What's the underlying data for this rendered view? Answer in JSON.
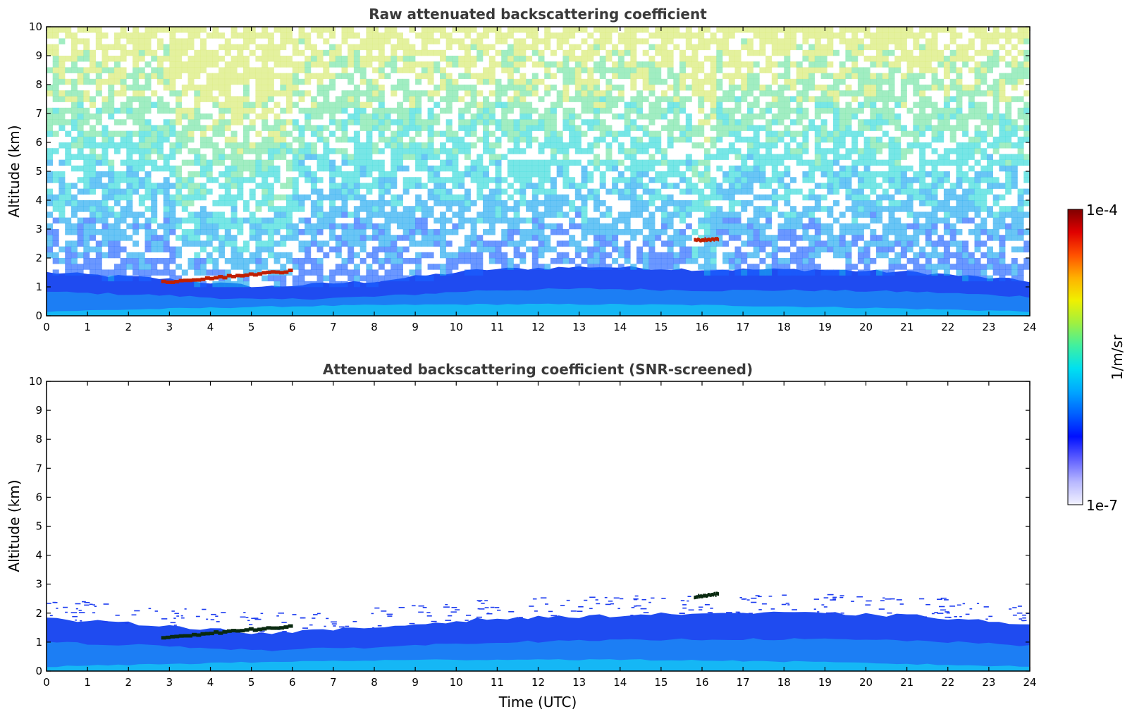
{
  "chart_data": [
    {
      "type": "heatmap",
      "title": "Raw attenuated backscattering coefficient",
      "xlabel": "",
      "ylabel": "Altitude (km)",
      "xlim": [
        0,
        24
      ],
      "ylim": [
        0,
        10
      ],
      "xticks": [
        "0",
        "1",
        "2",
        "3",
        "4",
        "5",
        "6",
        "7",
        "8",
        "9",
        "10",
        "11",
        "12",
        "13",
        "14",
        "15",
        "16",
        "17",
        "18",
        "19",
        "20",
        "21",
        "22",
        "23",
        "24"
      ],
      "yticks": [
        "0",
        "1",
        "2",
        "3",
        "4",
        "5",
        "6",
        "7",
        "8",
        "9",
        "10"
      ],
      "features": [
        {
          "kind": "boundary_layer",
          "time_range": [
            0,
            24
          ],
          "top_km": [
            1.5,
            1.3,
            1.0,
            1.2,
            1.6,
            1.7,
            1.6,
            1.6,
            1.5,
            1.2
          ]
        },
        {
          "kind": "low_cloud",
          "time_range": [
            2.8,
            6.0
          ],
          "altitude_km": [
            1.15,
            1.55
          ]
        },
        {
          "kind": "cloud",
          "time_range": [
            15.8,
            16.4
          ],
          "altitude_km": [
            2.6,
            2.65
          ]
        }
      ]
    },
    {
      "type": "heatmap",
      "title": "Attenuated backscattering coefficient (SNR-screened)",
      "xlabel": "Time (UTC)",
      "ylabel": "Altitude (km)",
      "xlim": [
        0,
        24
      ],
      "ylim": [
        0,
        10
      ],
      "xticks": [
        "0",
        "1",
        "2",
        "3",
        "4",
        "5",
        "6",
        "7",
        "8",
        "9",
        "10",
        "11",
        "12",
        "13",
        "14",
        "15",
        "16",
        "17",
        "18",
        "19",
        "20",
        "21",
        "22",
        "23",
        "24"
      ],
      "yticks": [
        "0",
        "1",
        "2",
        "3",
        "4",
        "5",
        "6",
        "7",
        "8",
        "9",
        "10"
      ],
      "features": [
        {
          "kind": "boundary_layer",
          "time_range": [
            0,
            24
          ],
          "top_km": [
            1.8,
            1.6,
            1.3,
            1.5,
            1.8,
            1.9,
            2.0,
            2.0,
            1.9,
            1.6
          ]
        },
        {
          "kind": "low_cloud",
          "time_range": [
            2.8,
            6.0
          ],
          "altitude_km": [
            1.15,
            1.55
          ]
        },
        {
          "kind": "cloud",
          "time_range": [
            15.8,
            16.4
          ],
          "altitude_km": [
            2.55,
            2.65
          ]
        }
      ]
    }
  ],
  "colorbar": {
    "min_label": "1e-7",
    "max_label": "1e-4",
    "label": "1/m/sr",
    "scale": "log",
    "colormap": [
      "#f2f2ff",
      "#b8b8ff",
      "#6060ff",
      "#0010ff",
      "#0060ff",
      "#00a8ff",
      "#00e0f0",
      "#40f0a0",
      "#a0f040",
      "#f0f000",
      "#ffb000",
      "#ff5000",
      "#e00000",
      "#800000"
    ]
  }
}
